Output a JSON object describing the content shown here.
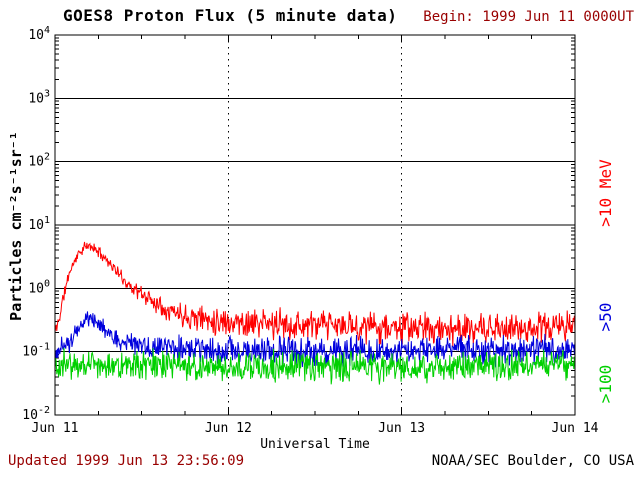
{
  "chart_data": {
    "type": "line",
    "title": "GOES8 Proton Flux (5 minute data)",
    "begin_label": "Begin: 1999 Jun 11 0000UT",
    "updated_label": "Updated 1999 Jun 13 23:56:09",
    "credit": "NOAA/SEC Boulder, CO USA",
    "xlabel": "Universal Time",
    "ylabel_display": "Particles cm⁻²s⁻¹sr⁻¹",
    "x_range_hours": [
      0,
      72
    ],
    "x_major_ticks": [
      {
        "hour": 0,
        "label": "Jun 11"
      },
      {
        "hour": 24,
        "label": "Jun 12"
      },
      {
        "hour": 48,
        "label": "Jun 13"
      },
      {
        "hour": 72,
        "label": "Jun 14"
      }
    ],
    "x_minor_tick_hours": 6,
    "x_grid_hours": [
      24,
      48
    ],
    "y_log_range": [
      -2,
      4
    ],
    "y_ticks": [
      {
        "base": "10",
        "exp": "4"
      },
      {
        "base": "10",
        "exp": "3"
      },
      {
        "base": "10",
        "exp": "2"
      },
      {
        "base": "10",
        "exp": "1"
      },
      {
        "base": "10",
        "exp": "0"
      },
      {
        "base": "10",
        "exp": "-1"
      },
      {
        "base": "10",
        "exp": "-2"
      }
    ],
    "sample_minutes": 5,
    "grid": "on",
    "legend_position": "right",
    "colors": {
      "axis": "#000000",
      "text": "#000000",
      "annotation": "#990000",
      "background": "#ffffff"
    },
    "series": [
      {
        "name": ">10 MeV proton flux",
        "label": ">10 MeV",
        "color": "#ff0000",
        "seed": 11,
        "envelope": [
          [
            0,
            0.2
          ],
          [
            0.5,
            0.3
          ],
          [
            1,
            0.6
          ],
          [
            2,
            1.8
          ],
          [
            3,
            3.2
          ],
          [
            4,
            4.4
          ],
          [
            5,
            4.6
          ],
          [
            6,
            3.8
          ],
          [
            7,
            3.0
          ],
          [
            8,
            2.2
          ],
          [
            9,
            1.6
          ],
          [
            10,
            1.2
          ],
          [
            12,
            0.8
          ],
          [
            14,
            0.6
          ],
          [
            16,
            0.45
          ],
          [
            18,
            0.38
          ],
          [
            21,
            0.33
          ],
          [
            24,
            0.3
          ],
          [
            30,
            0.27
          ],
          [
            36,
            0.26
          ],
          [
            48,
            0.24
          ],
          [
            60,
            0.22
          ],
          [
            72,
            0.26
          ]
        ],
        "noise_amp": [
          [
            0,
            0.1
          ],
          [
            2,
            0.06
          ],
          [
            8,
            0.06
          ],
          [
            12,
            0.1
          ],
          [
            18,
            0.14
          ],
          [
            24,
            0.17
          ],
          [
            72,
            0.17
          ]
        ]
      },
      {
        "name": ">50 MeV proton flux",
        "label": ">50",
        "color": "#0000dd",
        "seed": 50,
        "envelope": [
          [
            0,
            0.1
          ],
          [
            2,
            0.14
          ],
          [
            4,
            0.3
          ],
          [
            5,
            0.33
          ],
          [
            7,
            0.22
          ],
          [
            10,
            0.14
          ],
          [
            14,
            0.12
          ],
          [
            24,
            0.1
          ],
          [
            48,
            0.1
          ],
          [
            72,
            0.11
          ]
        ],
        "noise_amp": [
          [
            0,
            0.12
          ],
          [
            4,
            0.1
          ],
          [
            10,
            0.13
          ],
          [
            24,
            0.16
          ],
          [
            72,
            0.16
          ]
        ]
      },
      {
        "name": ">100 MeV proton flux",
        "label": ">100",
        "color": "#00d000",
        "seed": 100,
        "envelope": [
          [
            0,
            0.06
          ],
          [
            12,
            0.065
          ],
          [
            24,
            0.058
          ],
          [
            48,
            0.058
          ],
          [
            72,
            0.064
          ]
        ],
        "noise_amp": [
          [
            0,
            0.17
          ],
          [
            72,
            0.17
          ]
        ]
      }
    ]
  }
}
